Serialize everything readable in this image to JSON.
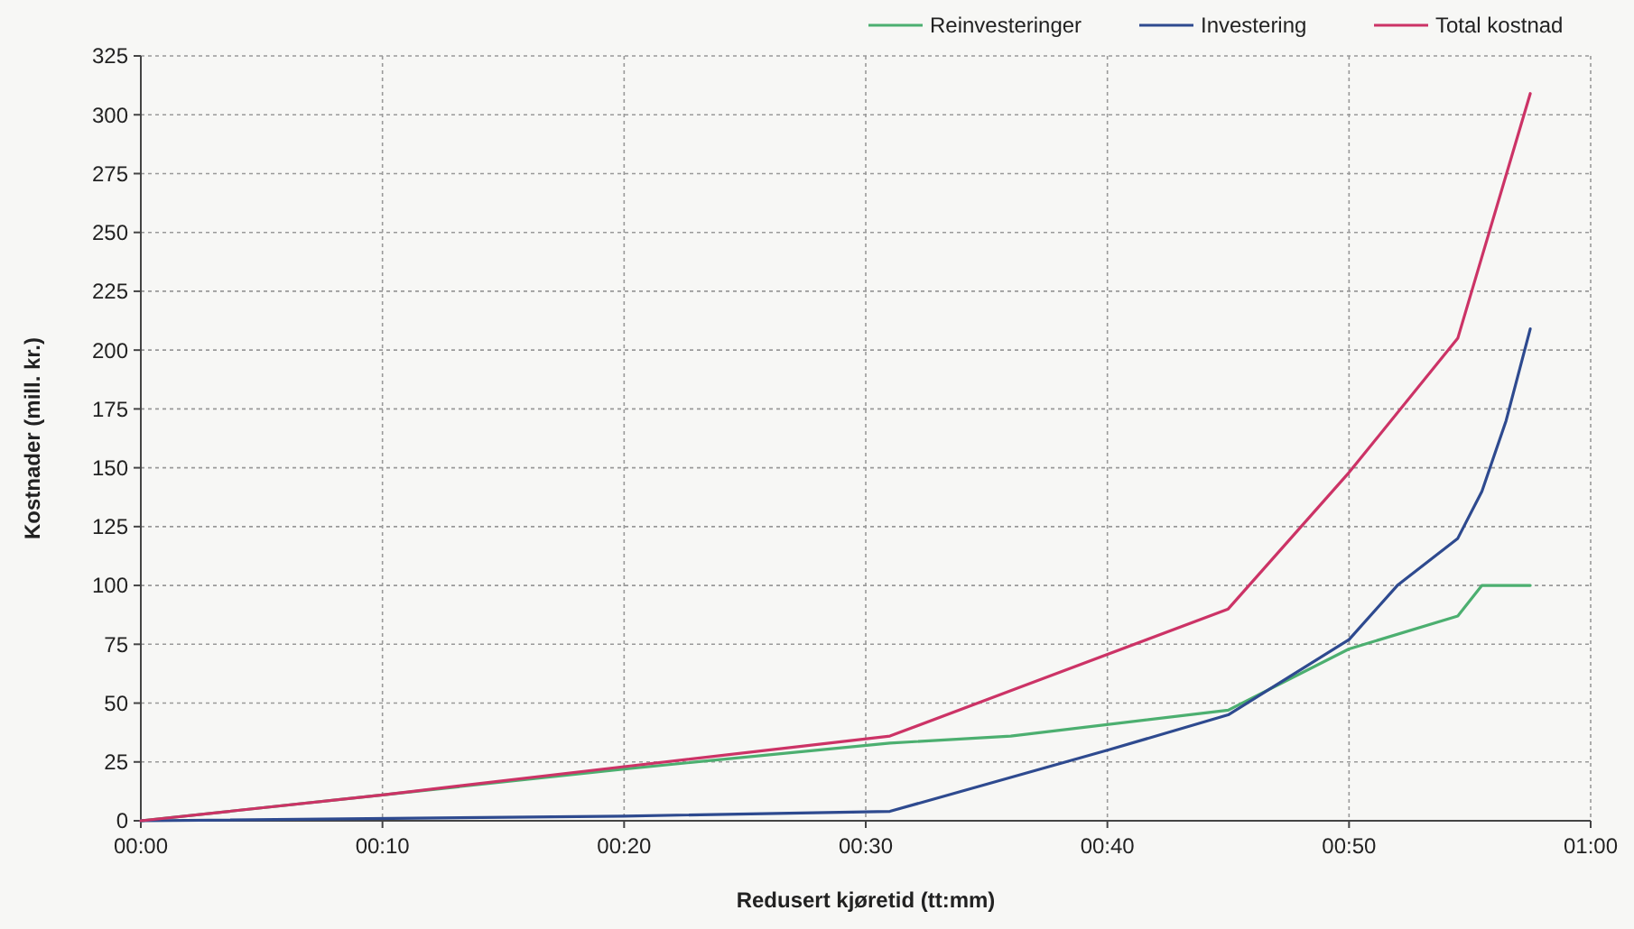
{
  "chart_data": {
    "type": "line",
    "xlabel": "Redusert kjøretid (tt:mm)",
    "ylabel": "Kostnader (mill. kr.)",
    "xlim": [
      0,
      60
    ],
    "xticks": [
      {
        "value": 0,
        "label": "00:00"
      },
      {
        "value": 10,
        "label": "00:10"
      },
      {
        "value": 20,
        "label": "00:20"
      },
      {
        "value": 30,
        "label": "00:30"
      },
      {
        "value": 40,
        "label": "00:40"
      },
      {
        "value": 50,
        "label": "00:50"
      },
      {
        "value": 60,
        "label": "01:00"
      }
    ],
    "ylim": [
      0,
      325
    ],
    "yticks": [
      0,
      25,
      50,
      75,
      100,
      125,
      150,
      175,
      200,
      225,
      250,
      275,
      300,
      325
    ],
    "grid": true,
    "legend": "top right",
    "marker": "none",
    "line_style": "solid",
    "series": [
      {
        "name": "Reinvesteringer",
        "color": "#4caf70",
        "x": [
          0,
          10,
          20,
          31,
          36,
          45,
          50,
          54.5,
          55.5,
          57.5
        ],
        "values": [
          0,
          11,
          22,
          33,
          36,
          47,
          73,
          87,
          100,
          100
        ]
      },
      {
        "name": "Investering",
        "color": "#2e4a8f",
        "x": [
          0,
          20,
          31,
          40,
          45,
          50,
          52,
          54.5,
          55.5,
          56.5,
          57.5
        ],
        "values": [
          0,
          2,
          4,
          30,
          45,
          77,
          100,
          120,
          140,
          170,
          209
        ]
      },
      {
        "name": "Total kostnad",
        "color": "#cc3366",
        "x": [
          0,
          10,
          20,
          31,
          45,
          50,
          54.5,
          57.5
        ],
        "values": [
          0,
          11,
          23,
          36,
          90,
          148,
          205,
          309
        ]
      }
    ]
  }
}
